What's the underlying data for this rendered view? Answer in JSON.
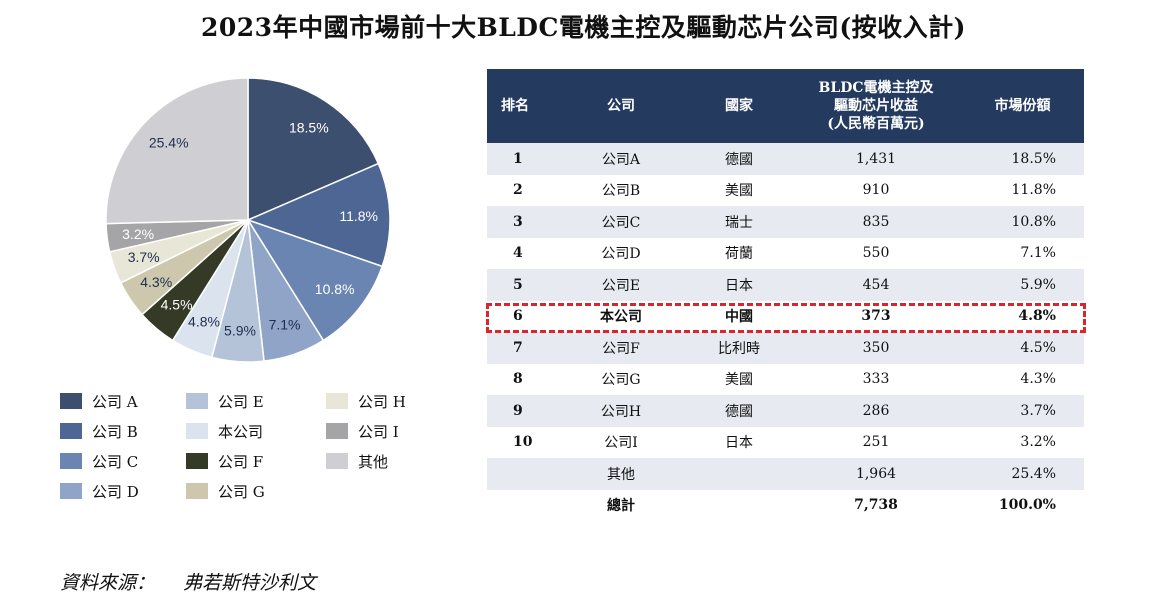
{
  "title": "2023年中國市場前十大BLDC電機主控及驅動芯片公司(按收入計)",
  "chart_data": {
    "type": "pie",
    "start_angle_deg": 0,
    "direction": "clockwise",
    "slices": [
      {
        "label": "公司 A",
        "value": 18.5,
        "label_text": "18.5%",
        "color": "#3d4f6e",
        "text_color": "#ffffff"
      },
      {
        "label": "公司 B",
        "value": 11.8,
        "label_text": "11.8%",
        "color": "#4d6693",
        "text_color": "#ffffff"
      },
      {
        "label": "公司 C",
        "value": 10.8,
        "label_text": "10.8%",
        "color": "#6b85b2",
        "text_color": "#ffffff"
      },
      {
        "label": "公司 D",
        "value": 7.1,
        "label_text": "7.1%",
        "color": "#8fa4c7",
        "text_color": "#1f2f4f"
      },
      {
        "label": "公司 E",
        "value": 5.9,
        "label_text": "5.9%",
        "color": "#b5c3d9",
        "text_color": "#1f2f4f"
      },
      {
        "label": "本公司",
        "value": 4.8,
        "label_text": "4.8%",
        "color": "#dbe3ee",
        "text_color": "#1f2f4f"
      },
      {
        "label": "公司 F",
        "value": 4.5,
        "label_text": "4.5%",
        "color": "#343a26",
        "text_color": "#ffffff"
      },
      {
        "label": "公司 G",
        "value": 4.3,
        "label_text": "4.3%",
        "color": "#cdc8ad",
        "text_color": "#1f2f4f"
      },
      {
        "label": "公司 H",
        "value": 3.7,
        "label_text": "3.7%",
        "color": "#e8e6d7",
        "text_color": "#1f2f4f"
      },
      {
        "label": "公司 I",
        "value": 3.2,
        "label_text": "3.2%",
        "color": "#a5a5a8",
        "text_color": "#ffffff"
      },
      {
        "label": "其他",
        "value": 25.4,
        "label_text": "25.4%",
        "color": "#cfcfd3",
        "text_color": "#1f2f4f"
      }
    ]
  },
  "table": {
    "headers": {
      "rank": "排名",
      "company": "公司",
      "country": "國家",
      "revenue_l1": "BLDC電機主控及",
      "revenue_l2": "驅動芯片收益",
      "revenue_l3": "(人民幣百萬元)",
      "share": "市場份額"
    },
    "rows": [
      {
        "rank": "1",
        "company": "公司A",
        "country": "德國",
        "revenue": "1,431",
        "share": "18.5%"
      },
      {
        "rank": "2",
        "company": "公司B",
        "country": "美國",
        "revenue": "910",
        "share": "11.8%"
      },
      {
        "rank": "3",
        "company": "公司C",
        "country": "瑞士",
        "revenue": "835",
        "share": "10.8%"
      },
      {
        "rank": "4",
        "company": "公司D",
        "country": "荷蘭",
        "revenue": "550",
        "share": "7.1%"
      },
      {
        "rank": "5",
        "company": "公司E",
        "country": "日本",
        "revenue": "454",
        "share": "5.9%"
      },
      {
        "rank": "6",
        "company": "本公司",
        "country": "中國",
        "revenue": "373",
        "share": "4.8%"
      },
      {
        "rank": "7",
        "company": "公司F",
        "country": "比利時",
        "revenue": "350",
        "share": "4.5%"
      },
      {
        "rank": "8",
        "company": "公司G",
        "country": "美國",
        "revenue": "333",
        "share": "4.3%"
      },
      {
        "rank": "9",
        "company": "公司H",
        "country": "德國",
        "revenue": "286",
        "share": "3.7%"
      },
      {
        "rank": "10",
        "company": "公司I",
        "country": "日本",
        "revenue": "251",
        "share": "3.2%"
      },
      {
        "rank": "",
        "company": "其他",
        "country": "",
        "revenue": "1,964",
        "share": "25.4%"
      },
      {
        "rank": "",
        "company": "總計",
        "country": "",
        "revenue": "7,738",
        "share": "100.0%"
      }
    ]
  },
  "source": {
    "label": "資料來源：",
    "text": "弗若斯特沙利文"
  }
}
